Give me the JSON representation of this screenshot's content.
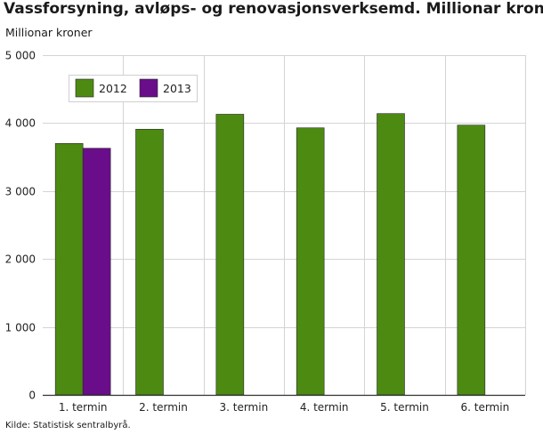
{
  "chart": {
    "title": "Vassforsyning, avløps- og renovasjonsverksemd. Millionar kroner",
    "subtitle": "Millionar kroner",
    "source": "Kilde: Statistisk sentralbyrå."
  },
  "chart_data": {
    "type": "bar",
    "title": "Vassforsyning, avløps- og renovasjonsverksemd. Millionar kroner",
    "subtitle": "Millionar kroner",
    "xlabel": "",
    "ylabel": "",
    "categories": [
      "1. termin",
      "2. termin",
      "3. termin",
      "4. termin",
      "5. termin",
      "6. termin"
    ],
    "series": [
      {
        "name": "2012",
        "color": "#4d8a12",
        "values": [
          3700,
          3910,
          4130,
          3930,
          4140,
          3970
        ]
      },
      {
        "name": "2013",
        "color": "#6a0d8a",
        "values": [
          3630,
          null,
          null,
          null,
          null,
          null
        ]
      }
    ],
    "ylim": [
      0,
      5000
    ],
    "yticks": [
      0,
      1000,
      2000,
      3000,
      4000,
      5000
    ],
    "ytick_labels": [
      "0",
      "1 000",
      "2 000",
      "3 000",
      "4 000",
      "5 000"
    ],
    "grid": "horizontal and vertical",
    "legend_position": "top-left"
  }
}
